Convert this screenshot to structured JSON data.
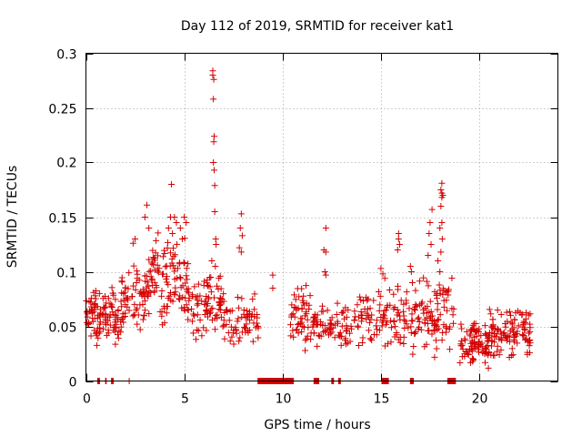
{
  "chart_data": {
    "type": "scatter",
    "title": "Day 112 of 2019, SRMTID for receiver kat1",
    "xlabel": "GPS time / hours",
    "ylabel": "SRMTID / TECUs",
    "xlim": [
      0,
      24
    ],
    "ylim": [
      0,
      0.3
    ],
    "xticks": [
      "0",
      "5",
      "10",
      "15",
      "20"
    ],
    "yticks": [
      "0",
      "0.05",
      "0.1",
      "0.15",
      "0.2",
      "0.25",
      "0.3"
    ],
    "grid": true,
    "marker": "+",
    "color": "#d40000",
    "clusters": [
      {
        "x0": 0.0,
        "x1": 1.8,
        "ymin": 0.03,
        "ymax": 0.09,
        "n": 110
      },
      {
        "x0": 1.8,
        "x1": 3.2,
        "ymin": 0.045,
        "ymax": 0.11,
        "n": 70
      },
      {
        "x0": 3.2,
        "x1": 5.2,
        "ymin": 0.05,
        "ymax": 0.14,
        "n": 100
      },
      {
        "x0": 5.0,
        "x1": 6.2,
        "ymin": 0.035,
        "ymax": 0.1,
        "n": 45
      },
      {
        "x0": 6.0,
        "x1": 7.0,
        "ymin": 0.04,
        "ymax": 0.1,
        "n": 45
      },
      {
        "x0": 7.0,
        "x1": 8.8,
        "ymin": 0.03,
        "ymax": 0.085,
        "n": 65
      },
      {
        "x0": 10.4,
        "x1": 11.8,
        "ymin": 0.025,
        "ymax": 0.09,
        "n": 70
      },
      {
        "x0": 11.8,
        "x1": 13.6,
        "ymin": 0.025,
        "ymax": 0.075,
        "n": 60
      },
      {
        "x0": 13.6,
        "x1": 15.8,
        "ymin": 0.03,
        "ymax": 0.09,
        "n": 75
      },
      {
        "x0": 15.8,
        "x1": 18.8,
        "ymin": 0.02,
        "ymax": 0.1,
        "n": 130
      },
      {
        "x0": 19.0,
        "x1": 20.5,
        "ymin": 0.01,
        "ymax": 0.06,
        "n": 90
      },
      {
        "x0": 20.5,
        "x1": 22.6,
        "ymin": 0.02,
        "ymax": 0.07,
        "n": 110
      }
    ],
    "extra_points": [
      [
        6.45,
        0.284
      ],
      [
        6.45,
        0.28
      ],
      [
        6.5,
        0.276
      ],
      [
        6.48,
        0.258
      ],
      [
        6.52,
        0.224
      ],
      [
        6.5,
        0.219
      ],
      [
        6.48,
        0.2
      ],
      [
        6.52,
        0.193
      ],
      [
        6.55,
        0.179
      ],
      [
        6.55,
        0.155
      ],
      [
        6.6,
        0.13
      ],
      [
        6.62,
        0.125
      ],
      [
        6.4,
        0.11
      ],
      [
        6.35,
        0.095
      ],
      [
        6.58,
        0.105
      ],
      [
        4.35,
        0.18
      ],
      [
        4.3,
        0.15
      ],
      [
        4.5,
        0.15
      ],
      [
        4.6,
        0.145
      ],
      [
        4.2,
        0.14
      ],
      [
        4.8,
        0.14
      ],
      [
        5.0,
        0.15
      ],
      [
        5.1,
        0.145
      ],
      [
        4.9,
        0.13
      ],
      [
        4.4,
        0.135
      ],
      [
        3.1,
        0.161
      ],
      [
        3.0,
        0.15
      ],
      [
        3.2,
        0.14
      ],
      [
        2.5,
        0.13
      ],
      [
        2.4,
        0.126
      ],
      [
        7.9,
        0.153
      ],
      [
        7.85,
        0.14
      ],
      [
        7.95,
        0.133
      ],
      [
        7.8,
        0.122
      ],
      [
        7.9,
        0.118
      ],
      [
        9.5,
        0.097
      ],
      [
        9.5,
        0.085
      ],
      [
        12.2,
        0.14
      ],
      [
        12.1,
        0.12
      ],
      [
        12.2,
        0.118
      ],
      [
        12.15,
        0.1
      ],
      [
        12.2,
        0.097
      ],
      [
        15.0,
        0.103
      ],
      [
        15.1,
        0.098
      ],
      [
        15.2,
        0.094
      ],
      [
        15.9,
        0.135
      ],
      [
        15.9,
        0.13
      ],
      [
        15.95,
        0.125
      ],
      [
        15.85,
        0.12
      ],
      [
        16.5,
        0.105
      ],
      [
        16.55,
        0.1
      ],
      [
        16.6,
        0.09
      ],
      [
        17.6,
        0.157
      ],
      [
        17.5,
        0.145
      ],
      [
        17.45,
        0.135
      ],
      [
        17.55,
        0.125
      ],
      [
        17.4,
        0.115
      ],
      [
        18.1,
        0.181
      ],
      [
        18.05,
        0.175
      ],
      [
        18.1,
        0.172
      ],
      [
        18.15,
        0.17
      ],
      [
        18.1,
        0.168
      ],
      [
        18.05,
        0.16
      ],
      [
        18.1,
        0.145
      ],
      [
        18.0,
        0.14
      ],
      [
        18.12,
        0.13
      ],
      [
        18.05,
        0.118
      ],
      [
        17.9,
        0.11
      ],
      [
        18.0,
        0.1
      ]
    ],
    "zero_segments": [
      [
        0.6,
        0.7
      ],
      [
        1.0,
        1.05
      ],
      [
        1.3,
        1.4
      ],
      [
        2.2,
        2.22
      ],
      [
        8.75,
        10.55
      ],
      [
        11.6,
        11.85
      ],
      [
        12.5,
        12.6
      ],
      [
        12.85,
        12.95
      ],
      [
        15.05,
        15.4
      ],
      [
        16.5,
        16.65
      ],
      [
        18.4,
        18.8
      ]
    ]
  }
}
